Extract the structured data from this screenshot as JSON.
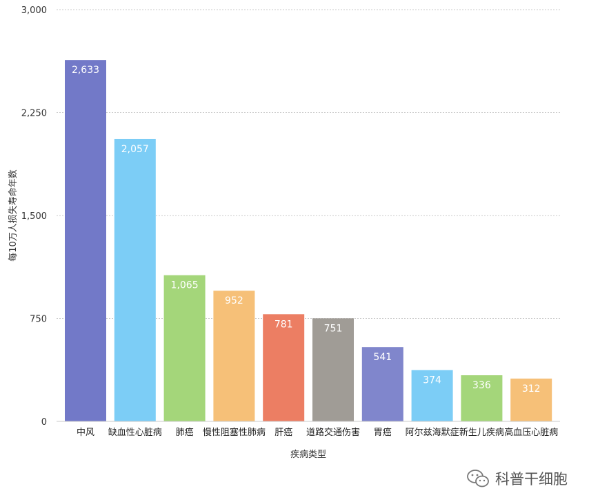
{
  "chart_data": {
    "type": "bar",
    "categories": [
      "中风",
      "缺血性心脏病",
      "肺癌",
      "慢性阻塞性肺病",
      "肝癌",
      "道路交通伤害",
      "胃癌",
      "阿尔兹海默症",
      "新生儿疾病",
      "高血压心脏病"
    ],
    "values": [
      2633,
      2057,
      1065,
      952,
      781,
      751,
      541,
      374,
      336,
      312
    ],
    "data_labels": [
      "2,633",
      "2,057",
      "1,065",
      "952",
      "781",
      "751",
      "541",
      "374",
      "336",
      "312"
    ],
    "colors": [
      "#7279c8",
      "#7ccdf6",
      "#a4d67a",
      "#f6c078",
      "#ec7e63",
      "#a09c96",
      "#8086cc",
      "#7ccdf6",
      "#a4d67a",
      "#f6c078"
    ],
    "xlabel": "疾病类型",
    "ylabel": "每10万人损失寿命年数",
    "ylim": [
      0,
      3000
    ],
    "yticks": [
      0,
      750,
      1500,
      2250,
      3000
    ],
    "ytick_labels": [
      "0",
      "750",
      "1,500",
      "2,250",
      "3,000"
    ],
    "grid": true,
    "legend": "none"
  },
  "watermark": {
    "icon": "wechat-icon",
    "text": "科普干细胞"
  }
}
